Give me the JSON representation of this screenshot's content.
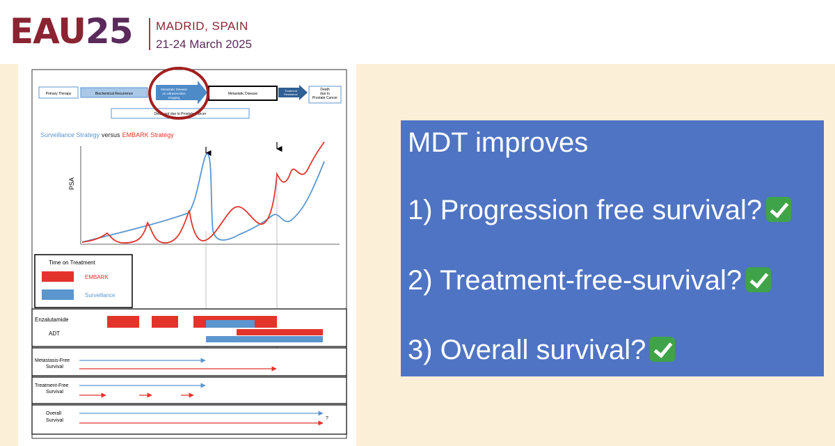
{
  "header": {
    "logo_text": "EAU",
    "logo_number": "25",
    "city": "MADRID, SPAIN",
    "dates": "21-24 March 2025"
  },
  "figure": {
    "flow": {
      "primary": "Primary Therapy",
      "biochemical": "Biochemical Recurrence",
      "meta_ultra_1": "Metastatic Disease",
      "meta_ultra_2": "on Ultrasensitive",
      "meta_ultra_3": "Imaging",
      "metastatic": "Metastatic Disease",
      "treatment_1": "Treatment",
      "treatment_2": "Resistance",
      "death_1": "Death",
      "death_2": "due to",
      "death_3": "Prostate Cancer",
      "death_not": "Death not due to Prostate Cancer"
    },
    "strategy_surveillance": "Surveillance Strategy",
    "strategy_versus": "versus",
    "strategy_embark": "EMBARK Strategy",
    "y_label": "PSA",
    "legend_title": "Time on Treatment",
    "legend_embark": "EMBARK",
    "legend_surveillance": "Surveillance",
    "row_enzalutamide": "Enzalutamide",
    "row_adt": "ADT",
    "mfs_1": "Metastasis-Free",
    "mfs_2": "Survival",
    "tfs_1": "Treatment-Free",
    "tfs_2": "Survival",
    "os_1": "Overall",
    "os_2": "Survival",
    "os_question": "?",
    "colors": {
      "embark": "#e3342c",
      "surveillance": "#5b96cf",
      "circle": "#a11f1f"
    }
  },
  "callout": {
    "title": "MDT improves",
    "items": [
      "1) Progression free survival?",
      "2) Treatment-free-survival?",
      "3) Overall survival?"
    ],
    "check_icon": "green-check-mark-icon",
    "background": "#4f74c3"
  }
}
